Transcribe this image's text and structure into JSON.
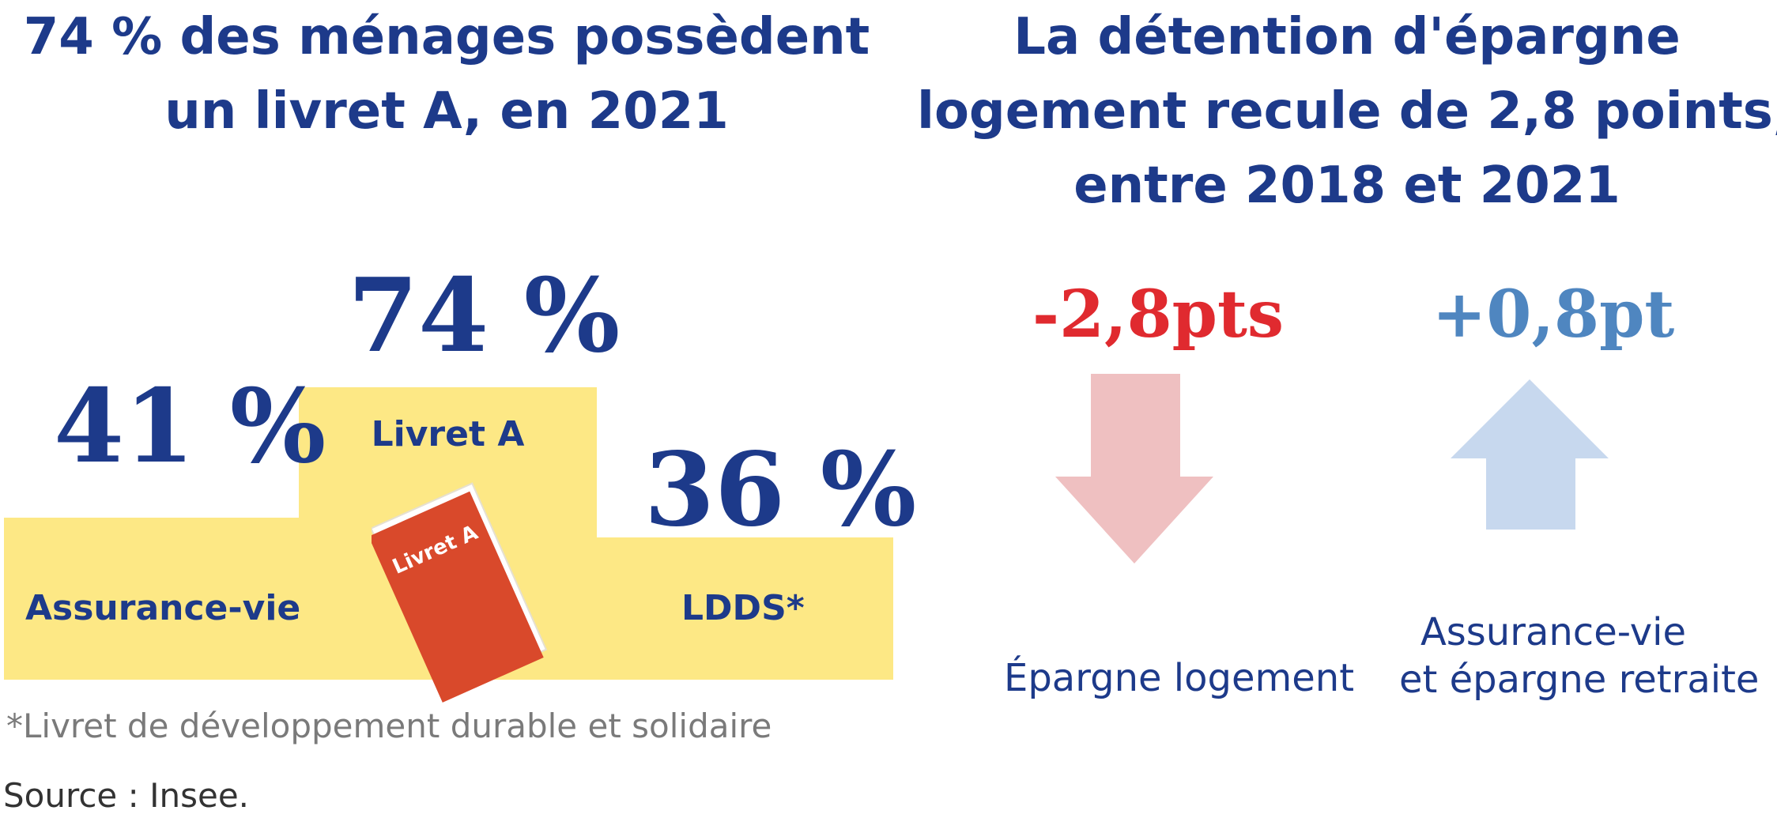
{
  "left_title_line1": "74 % des ménages possèdent",
  "left_title_line2": "un livret A, en 2021",
  "right_title_line1": "La détention d'épargne",
  "right_title_line2": "logement recule de 2,8 points,",
  "right_title_line3": "entre 2018 et 2021",
  "book_label": "Livret A",
  "footnote": "*Livret de développement durable et solidaire",
  "source": "Source : Insee.",
  "colors": {
    "title": "#1d3a8a",
    "podium": "#fde885",
    "book": "#d9492b",
    "down_value": "#e02a2f",
    "down_arrow": "#efc0c1",
    "up_value": "#4f86c0",
    "up_arrow": "#c7d8ee"
  },
  "chart_data": [
    {
      "type": "bar",
      "categories": [
        "Assurance-vie",
        "Livret A",
        "LDDS*"
      ],
      "values": [
        41,
        74,
        36
      ],
      "value_labels": [
        "41 %",
        "74 %",
        "36 %"
      ],
      "ylim": [
        0,
        100
      ]
    },
    {
      "type": "bar",
      "categories": [
        "Épargne logement",
        "Assurance-vie et épargne retraite"
      ],
      "values": [
        -2.8,
        0.8
      ],
      "value_labels": [
        "-2,8pts",
        "+0,8pt"
      ],
      "category_lines": [
        [
          "Épargne logement"
        ],
        [
          "Assurance-vie",
          "et épargne retraite"
        ]
      ]
    }
  ]
}
